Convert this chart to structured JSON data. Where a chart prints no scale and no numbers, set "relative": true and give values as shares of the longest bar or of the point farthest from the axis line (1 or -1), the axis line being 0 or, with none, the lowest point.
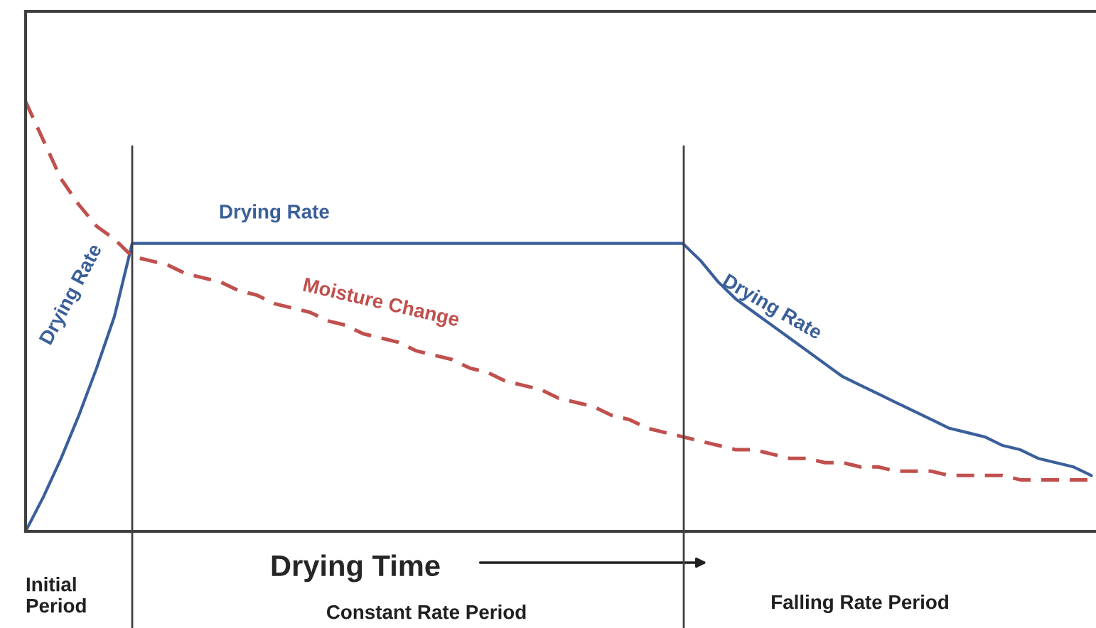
{
  "chart_data": {
    "type": "line",
    "relative": true,
    "xlabel": "Drying Time",
    "categories": [
      null,
      null,
      null,
      null,
      null,
      null,
      null,
      null,
      null,
      null,
      null,
      null,
      null,
      null,
      null,
      null,
      null,
      null,
      null,
      null,
      null,
      null,
      null,
      null,
      null,
      null,
      null,
      null,
      null,
      null,
      null,
      null,
      null,
      null,
      null,
      null,
      null,
      null,
      null,
      null,
      null,
      null,
      null,
      null,
      null,
      null,
      null,
      null,
      null,
      null,
      null,
      null,
      null,
      null,
      null,
      null,
      null,
      null,
      null,
      null,
      null
    ],
    "series": [
      {
        "name": "Drying Rate",
        "color": "#3a5f9a",
        "line_style": "solid",
        "values": [
          0,
          0.08,
          0.17,
          0.27,
          0.38,
          0.5,
          0.67,
          0.67,
          0.67,
          0.67,
          0.67,
          0.67,
          0.67,
          0.67,
          0.67,
          0.67,
          0.67,
          0.67,
          0.67,
          0.67,
          0.67,
          0.67,
          0.67,
          0.67,
          0.67,
          0.67,
          0.67,
          0.67,
          0.67,
          0.67,
          0.67,
          0.67,
          0.67,
          0.67,
          0.67,
          0.67,
          0.67,
          0.67,
          0.63,
          0.58,
          0.54,
          0.51,
          0.48,
          0.45,
          0.42,
          0.39,
          0.36,
          0.34,
          0.32,
          0.3,
          0.28,
          0.26,
          0.24,
          0.23,
          0.22,
          0.2,
          0.19,
          0.17,
          0.16,
          0.15,
          0.13
        ]
      },
      {
        "name": "Moisture Change",
        "color": "#c0504d",
        "line_style": "dashed",
        "values": [
          1.0,
          0.91,
          0.82,
          0.76,
          0.71,
          0.68,
          0.64,
          0.63,
          0.62,
          0.6,
          0.59,
          0.58,
          0.56,
          0.55,
          0.53,
          0.52,
          0.51,
          0.49,
          0.48,
          0.46,
          0.45,
          0.44,
          0.42,
          0.41,
          0.4,
          0.38,
          0.37,
          0.35,
          0.34,
          0.33,
          0.31,
          0.3,
          0.29,
          0.27,
          0.26,
          0.24,
          0.23,
          0.22,
          0.21,
          0.2,
          0.19,
          0.19,
          0.18,
          0.17,
          0.17,
          0.16,
          0.16,
          0.15,
          0.15,
          0.14,
          0.14,
          0.14,
          0.13,
          0.13,
          0.13,
          0.13,
          0.12,
          0.12,
          0.12,
          0.12,
          0.12
        ]
      }
    ],
    "annotations": [
      "Drying Rate",
      "Drying Rate",
      "Initial\nPeriod",
      "Constant Rate Period",
      "Falling Rate Period"
    ]
  }
}
